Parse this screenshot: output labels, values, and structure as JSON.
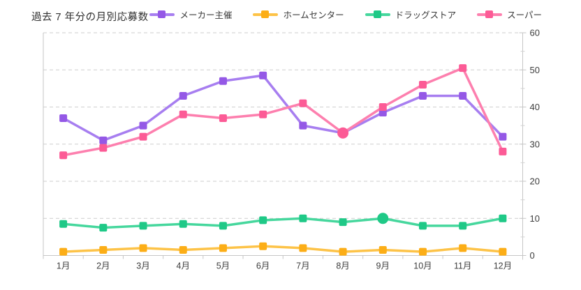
{
  "page": {
    "title": "過去 7 年分の月別応募数"
  },
  "chart_data": {
    "type": "line",
    "title": "過去 7 年分の月別応募数",
    "xlabel": "",
    "ylabel": "",
    "legend_position": "top",
    "grid": {
      "horizontal": true,
      "style": "dashed"
    },
    "y_axis": {
      "position": "right",
      "min": 0,
      "max": 60,
      "tick_step": 10,
      "minor_tick_step": 5,
      "tick_labels": [
        "0",
        "10",
        "20",
        "30",
        "40",
        "50",
        "60"
      ]
    },
    "categories": [
      "1月",
      "2月",
      "3月",
      "4月",
      "5月",
      "6月",
      "7月",
      "8月",
      "9月",
      "10月",
      "11月",
      "12月"
    ],
    "series": [
      {
        "name": "メーカー主催",
        "line_color": "#a77ef0",
        "marker_color": "#9458e6",
        "marker": "square",
        "highlight_circle_index": null,
        "values": [
          37,
          31,
          35,
          43,
          47,
          48.5,
          35,
          33,
          38.5,
          43,
          43,
          32
        ]
      },
      {
        "name": "ホームセンター",
        "line_color": "#fdc348",
        "marker_color": "#fcae17",
        "marker": "square",
        "highlight_circle_index": null,
        "values": [
          1,
          1.5,
          2,
          1.5,
          2,
          2.5,
          2,
          1,
          1.5,
          1,
          2,
          1
        ]
      },
      {
        "name": "ドラッグストア",
        "line_color": "#46d79d",
        "marker_color": "#1fc987",
        "marker": "square",
        "highlight_circle_index": 8,
        "values": [
          8.5,
          7.5,
          8,
          8.5,
          8,
          9.5,
          10,
          9,
          10,
          8,
          8,
          10
        ]
      },
      {
        "name": "スーパー",
        "line_color": "#fd7fae",
        "marker_color": "#fc5b96",
        "marker": "square",
        "highlight_circle_index": 7,
        "values": [
          27,
          29,
          32,
          38,
          37,
          38,
          41,
          33,
          40,
          46,
          50.5,
          28
        ]
      }
    ]
  }
}
